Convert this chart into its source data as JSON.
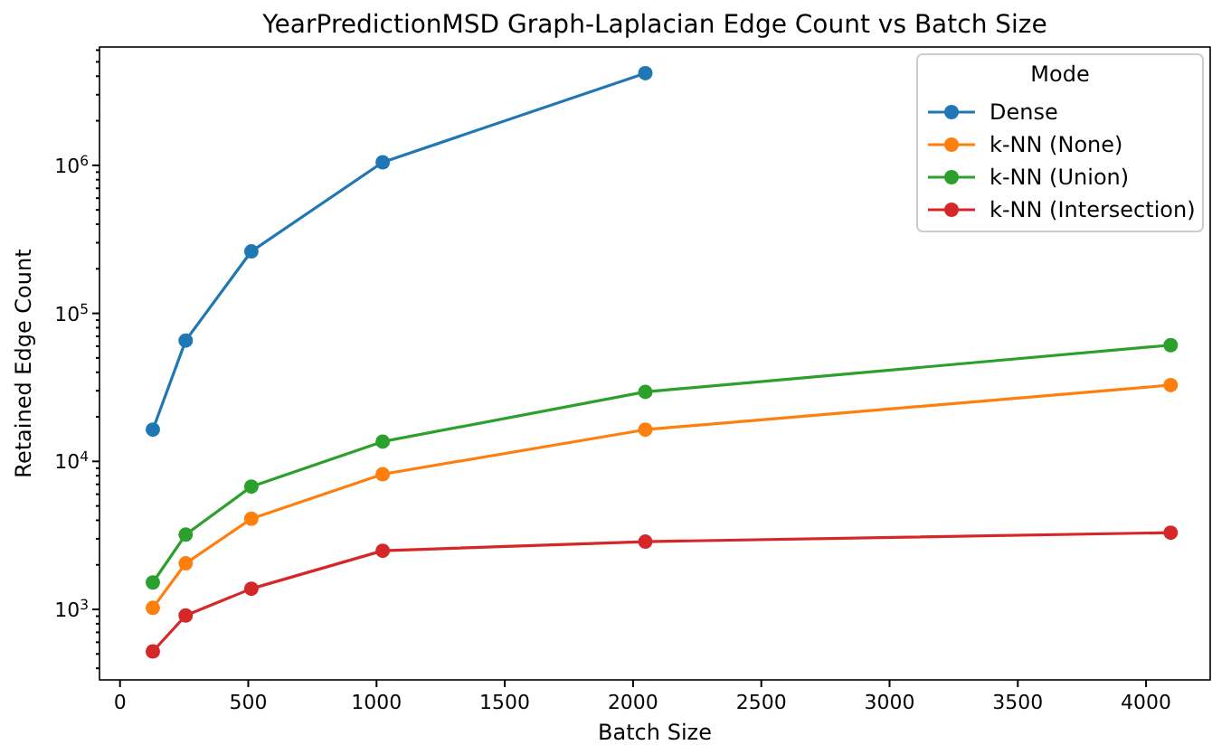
{
  "chart_data": {
    "type": "line",
    "title": "YearPredictionMSD Graph-Laplacian Edge Count vs Batch Size",
    "xlabel": "Batch Size",
    "ylabel": "Retained Edge Count",
    "legend_title": "Mode",
    "legend": "top right",
    "marker": "circle",
    "line_style": "solid",
    "grid": false,
    "log": "y",
    "x": [
      128,
      256,
      512,
      1024,
      2048,
      4096
    ],
    "xlim": [
      -80,
      4250
    ],
    "xticks": [
      0,
      500,
      1000,
      1500,
      2000,
      2500,
      3000,
      3500,
      4000
    ],
    "ylim": [
      334,
      6300000
    ],
    "yticks": [
      {
        "value": 400,
        "label": null
      },
      {
        "value": 500,
        "label": null
      },
      {
        "value": 600,
        "label": null
      },
      {
        "value": 700,
        "label": null
      },
      {
        "value": 800,
        "label": null
      },
      {
        "value": 900,
        "label": null
      },
      {
        "value": 1000,
        "label": "10$^{3}$"
      },
      {
        "value": 2000,
        "label": null
      },
      {
        "value": 3000,
        "label": null
      },
      {
        "value": 4000,
        "label": null
      },
      {
        "value": 5000,
        "label": null
      },
      {
        "value": 6000,
        "label": null
      },
      {
        "value": 7000,
        "label": null
      },
      {
        "value": 8000,
        "label": null
      },
      {
        "value": 9000,
        "label": null
      },
      {
        "value": 10000,
        "label": "10$^{4}$"
      },
      {
        "value": 20000,
        "label": null
      },
      {
        "value": 30000,
        "label": null
      },
      {
        "value": 40000,
        "label": null
      },
      {
        "value": 50000,
        "label": null
      },
      {
        "value": 60000,
        "label": null
      },
      {
        "value": 70000,
        "label": null
      },
      {
        "value": 80000,
        "label": null
      },
      {
        "value": 90000,
        "label": null
      },
      {
        "value": 100000,
        "label": "10$^{5}$"
      },
      {
        "value": 200000,
        "label": null
      },
      {
        "value": 300000,
        "label": null
      },
      {
        "value": 400000,
        "label": null
      },
      {
        "value": 500000,
        "label": null
      },
      {
        "value": 600000,
        "label": null
      },
      {
        "value": 700000,
        "label": null
      },
      {
        "value": 800000,
        "label": null
      },
      {
        "value": 900000,
        "label": null
      },
      {
        "value": 1000000,
        "label": "10$^{6}$"
      },
      {
        "value": 2000000,
        "label": null
      },
      {
        "value": 3000000,
        "label": null
      },
      {
        "value": 4000000,
        "label": null
      },
      {
        "value": 5000000,
        "label": null
      },
      {
        "value": 6000000,
        "label": null
      }
    ],
    "series": [
      {
        "name": "Dense",
        "color": "#1f77b4",
        "values": [
          16384,
          65536,
          262144,
          1048576,
          4194304,
          null
        ]
      },
      {
        "name": "k-NN (None)",
        "color": "#ff7f0e",
        "values": [
          1024,
          2048,
          4096,
          8192,
          16384,
          32768
        ]
      },
      {
        "name": "k-NN (Union)",
        "color": "#2ca02c",
        "values": [
          1520,
          3200,
          6760,
          13600,
          29500,
          61000
        ]
      },
      {
        "name": "k-NN (Intersection)",
        "color": "#d62728",
        "values": [
          520,
          910,
          1380,
          2490,
          2870,
          3300
        ]
      }
    ]
  }
}
